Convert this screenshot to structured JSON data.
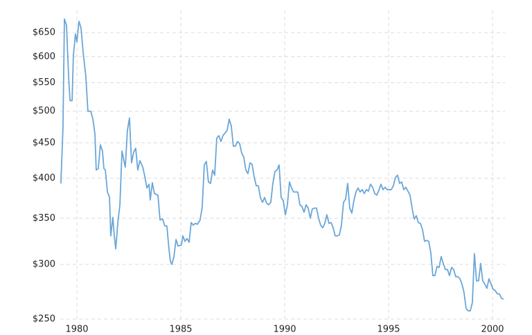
{
  "chart_data": {
    "type": "line",
    "log_y": true,
    "grid": true,
    "color": "#6aa6d8",
    "xlim": [
      1979.2,
      2000.6
    ],
    "xticks": [
      1980,
      1985,
      1990,
      1995,
      2000
    ],
    "ylim": [
      250,
      700
    ],
    "yticks": [
      {
        "value": 250,
        "label": "$250"
      },
      {
        "value": 300,
        "label": "$300"
      },
      {
        "value": 350,
        "label": "$350"
      },
      {
        "value": 400,
        "label": "$400"
      },
      {
        "value": 450,
        "label": "$450"
      },
      {
        "value": 500,
        "label": "$500"
      },
      {
        "value": 550,
        "label": "$550"
      },
      {
        "value": 600,
        "label": "$600"
      },
      {
        "value": 650,
        "label": "$650"
      }
    ],
    "x": [
      1979.23,
      1979.33,
      1979.4,
      1979.5,
      1979.6,
      1979.67,
      1979.77,
      1979.83,
      1979.93,
      1980,
      1980.1,
      1980.2,
      1980.3,
      1980.43,
      1980.53,
      1980.67,
      1980.77,
      1980.87,
      1980.93,
      1981.03,
      1981.13,
      1981.23,
      1981.3,
      1981.37,
      1981.47,
      1981.57,
      1981.63,
      1981.73,
      1981.8,
      1981.87,
      1981.97,
      1982.07,
      1982.17,
      1982.27,
      1982.33,
      1982.43,
      1982.53,
      1982.63,
      1982.73,
      1982.83,
      1982.93,
      1983.03,
      1983.17,
      1983.27,
      1983.37,
      1983.47,
      1983.53,
      1983.63,
      1983.73,
      1983.9,
      1984,
      1984.13,
      1984.23,
      1984.33,
      1984.43,
      1984.5,
      1984.57,
      1984.67,
      1984.77,
      1984.87,
      1985.03,
      1985.1,
      1985.2,
      1985.3,
      1985.4,
      1985.5,
      1985.6,
      1985.7,
      1985.8,
      1985.93,
      1986.03,
      1986.13,
      1986.23,
      1986.33,
      1986.43,
      1986.53,
      1986.63,
      1986.73,
      1986.83,
      1986.93,
      1987.03,
      1987.13,
      1987.23,
      1987.33,
      1987.43,
      1987.53,
      1987.63,
      1987.73,
      1987.83,
      1987.93,
      1988.03,
      1988.13,
      1988.23,
      1988.33,
      1988.43,
      1988.53,
      1988.63,
      1988.73,
      1988.83,
      1988.93,
      1989.03,
      1989.13,
      1989.23,
      1989.33,
      1989.43,
      1989.53,
      1989.63,
      1989.73,
      1989.83,
      1989.93,
      1990.03,
      1990.13,
      1990.23,
      1990.33,
      1990.43,
      1990.53,
      1990.63,
      1990.73,
      1990.83,
      1990.93,
      1991.03,
      1991.13,
      1991.23,
      1991.33,
      1991.43,
      1991.53,
      1991.63,
      1991.73,
      1991.83,
      1991.93,
      1992.03,
      1992.13,
      1992.23,
      1992.33,
      1992.43,
      1992.53,
      1992.63,
      1992.73,
      1992.83,
      1992.93,
      1993.03,
      1993.13,
      1993.23,
      1993.33,
      1993.43,
      1993.53,
      1993.63,
      1993.73,
      1993.83,
      1993.93,
      1994.03,
      1994.13,
      1994.23,
      1994.33,
      1994.43,
      1994.53,
      1994.63,
      1994.73,
      1994.83,
      1994.93,
      1995.03,
      1995.13,
      1995.23,
      1995.33,
      1995.43,
      1995.53,
      1995.63,
      1995.73,
      1995.83,
      1995.93,
      1996.03,
      1996.13,
      1996.23,
      1996.33,
      1996.43,
      1996.53,
      1996.63,
      1996.73,
      1996.83,
      1996.93,
      1997.03,
      1997.13,
      1997.23,
      1997.33,
      1997.43,
      1997.53,
      1997.63,
      1997.73,
      1997.83,
      1997.93,
      1998.03,
      1998.13,
      1998.23,
      1998.33,
      1998.43,
      1998.53,
      1998.63,
      1998.73,
      1998.83,
      1998.93,
      1999.03,
      1999.13,
      1999.23,
      1999.33,
      1999.43,
      1999.53,
      1999.63,
      1999.73,
      1999.83,
      1999.93,
      2000.03,
      2000.13,
      2000.23,
      2000.33,
      2000.43,
      2000.53
    ],
    "values": [
      393,
      473,
      680,
      666,
      562,
      518,
      518,
      602,
      647,
      630,
      675,
      660,
      609,
      562,
      500,
      500,
      487,
      463,
      411,
      413,
      447,
      438,
      413,
      411,
      382,
      375,
      330,
      351,
      330,
      316,
      345,
      366,
      438,
      423,
      415,
      469,
      489,
      421,
      436,
      442,
      411,
      424,
      415,
      402,
      387,
      392,
      372,
      394,
      380,
      378,
      348,
      349,
      341,
      341,
      316,
      303,
      300,
      308,
      326,
      319,
      320,
      330,
      324,
      327,
      323,
      345,
      342,
      344,
      343,
      348,
      363,
      418,
      423,
      395,
      393,
      411,
      404,
      457,
      461,
      452,
      461,
      465,
      469,
      487,
      476,
      445,
      445,
      452,
      449,
      435,
      429,
      411,
      406,
      421,
      419,
      402,
      390,
      390,
      375,
      369,
      375,
      368,
      366,
      369,
      393,
      409,
      411,
      418,
      375,
      371,
      354,
      366,
      395,
      387,
      382,
      382,
      382,
      366,
      364,
      357,
      366,
      362,
      350,
      361,
      362,
      362,
      350,
      342,
      339,
      344,
      354,
      344,
      345,
      339,
      330,
      330,
      331,
      342,
      369,
      373,
      393,
      362,
      356,
      371,
      382,
      387,
      382,
      385,
      380,
      385,
      383,
      392,
      388,
      380,
      378,
      384,
      392,
      385,
      388,
      385,
      385,
      385,
      390,
      401,
      404,
      393,
      395,
      385,
      388,
      383,
      378,
      362,
      349,
      353,
      345,
      344,
      337,
      324,
      325,
      324,
      312,
      289,
      289,
      298,
      297,
      308,
      301,
      295,
      295,
      289,
      297,
      295,
      288,
      288,
      286,
      281,
      273,
      259,
      257,
      257,
      264,
      311,
      284,
      284,
      301,
      284,
      281,
      277,
      286,
      281,
      276,
      275,
      272,
      272,
      268,
      267
    ]
  }
}
